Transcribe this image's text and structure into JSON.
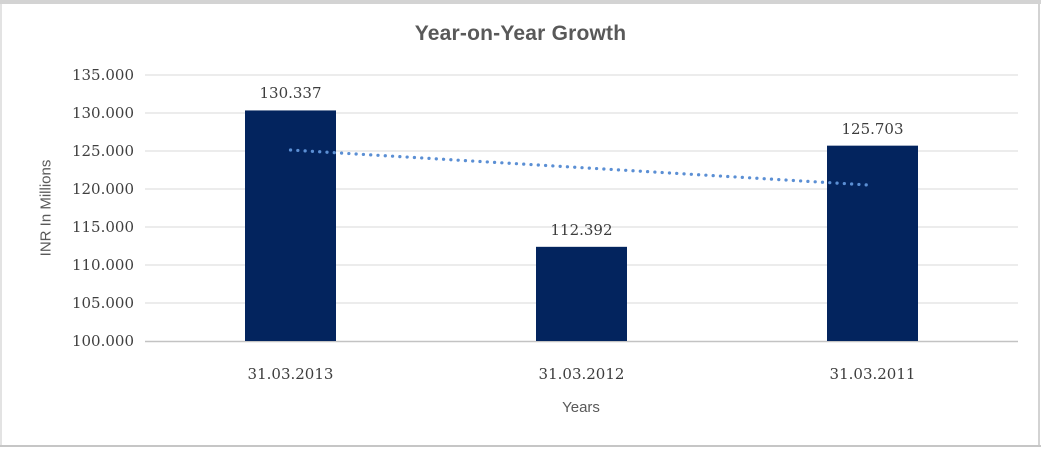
{
  "chart_data": {
    "type": "bar",
    "title": "Year-on-Year Growth",
    "categories": [
      "31.03.2013",
      "31.03.2012",
      "31.03.2011"
    ],
    "values": [
      130.337,
      112.392,
      125.703
    ],
    "data_labels": [
      "130.337",
      "112.392",
      "125.703"
    ],
    "xlabel": "Years",
    "ylabel": "INR In Millions",
    "ylim": [
      100,
      135
    ],
    "ytick_step": 5,
    "ytick_labels": [
      "100.000",
      "105.000",
      "110.000",
      "115.000",
      "120.000",
      "125.000",
      "130.000",
      "135.000"
    ],
    "grid": true,
    "legend": "none",
    "trendline": {
      "shape": "linear",
      "style": "dotted",
      "start_value": 125.13,
      "end_value": 120.49
    },
    "colors": {
      "bar": "#03245E",
      "trendline": "#5B8FD4",
      "gridline": "#D9D9D9",
      "axis_line": "#C3C3C3",
      "title_text": "#595959",
      "tick_text": "#3F3F3F"
    }
  }
}
